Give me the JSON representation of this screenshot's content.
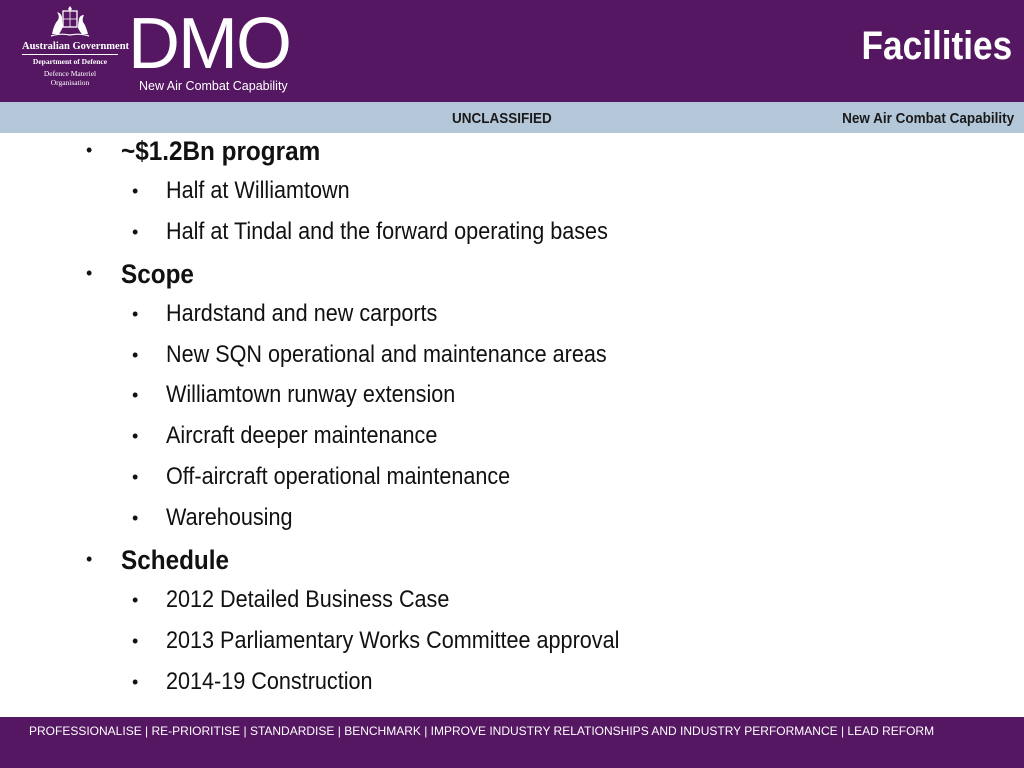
{
  "header": {
    "crest": {
      "icon": "commonwealth-coat-of-arms-icon",
      "government": "Australian Government",
      "department": "Department of Defence",
      "organisation": "Defence Materiel Organisation"
    },
    "brand": "DMO",
    "brand_subtitle": "New Air Combat Capability",
    "slide_title": "Facilities"
  },
  "classification_bar": {
    "classification": "UNCLASSIFIED",
    "program": "New Air Combat Capability"
  },
  "content": {
    "bullet_glyph": "•",
    "items": [
      {
        "level": 1,
        "text": "~$1.2Bn program"
      },
      {
        "level": 2,
        "text": "Half at Williamtown"
      },
      {
        "level": 2,
        "text": "Half at Tindal and the forward operating bases"
      },
      {
        "level": 1,
        "text": "Scope"
      },
      {
        "level": 2,
        "text": "Hardstand and new carports"
      },
      {
        "level": 2,
        "text": "New SQN operational and maintenance areas"
      },
      {
        "level": 2,
        "text": "Williamtown runway extension"
      },
      {
        "level": 2,
        "text": "Aircraft deeper maintenance"
      },
      {
        "level": 2,
        "text": "Off-aircraft operational maintenance"
      },
      {
        "level": 2,
        "text": "Warehousing"
      },
      {
        "level": 1,
        "text": "Schedule"
      },
      {
        "level": 2,
        "text": "2012 Detailed Business Case"
      },
      {
        "level": 2,
        "text": "2013 Parliamentary Works Committee approval"
      },
      {
        "level": 2,
        "text": "2014-19 Construction"
      }
    ]
  },
  "footer": {
    "text": "PROFESSIONALISE | RE-PRIORITISE | STANDARDISE | BENCHMARK | IMPROVE INDUSTRY RELATIONSHIPS AND INDUSTRY PERFORMANCE | LEAD REFORM"
  },
  "colors": {
    "primary_purple": "#551762",
    "classification_bar": "#b4c7d9"
  }
}
